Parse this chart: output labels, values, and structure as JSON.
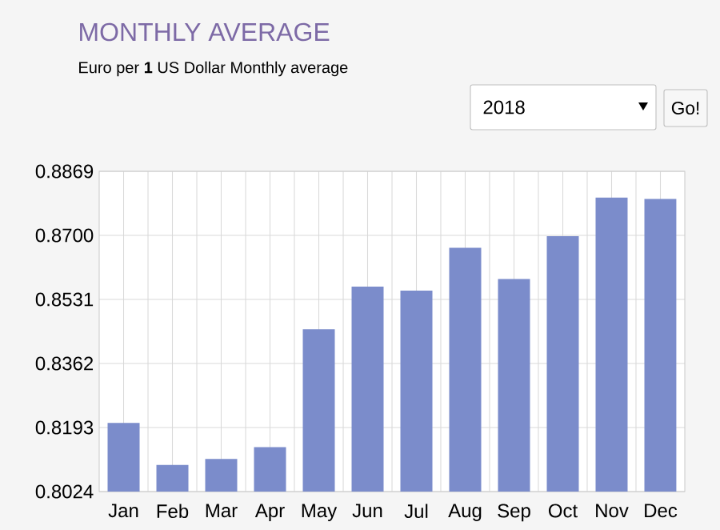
{
  "chart_data": {
    "type": "bar",
    "title": "MONTHLY AVERAGE",
    "subtitle": "Euro per **1** US Dollar Monthly average",
    "annotations": [
      "2018",
      "Go!"
    ],
    "categories": [
      "Jan",
      "Feb",
      "Mar",
      "Apr",
      "May",
      "Jun",
      "Jul",
      "Aug",
      "Sep",
      "Oct",
      "Nov",
      "Dec"
    ],
    "values": [
      0.8205,
      0.8094,
      0.811,
      0.8141,
      0.8452,
      0.8565,
      0.8554,
      0.8667,
      0.8585,
      0.8698,
      0.88,
      0.8796
    ],
    "color": "#7b8ccb",
    "ylim": [
      0.8024,
      0.8869
    ],
    "yticks": [
      {
        "value": 0.8024,
        "label": "0.8024"
      },
      {
        "value": 0.8193,
        "label": "0.8193"
      },
      {
        "value": 0.8362,
        "label": "0.8362"
      },
      {
        "value": 0.8531,
        "label": "0.8531"
      },
      {
        "value": 0.87,
        "label": "0.8700"
      },
      {
        "value": 0.8869,
        "label": "0.8869"
      }
    ],
    "grid": true
  }
}
